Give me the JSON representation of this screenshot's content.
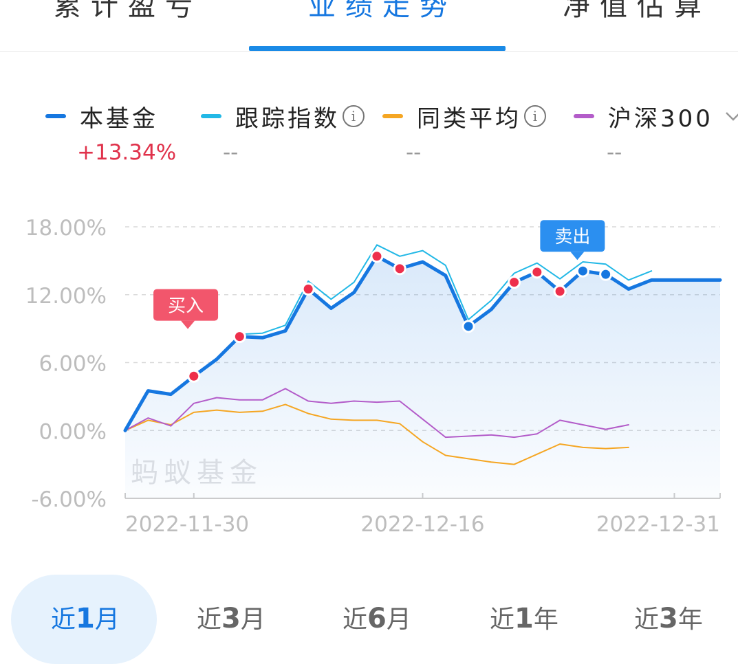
{
  "tabs": [
    {
      "label": "累计盈亏"
    },
    {
      "label": "业绩走势"
    },
    {
      "label": "净值估算"
    }
  ],
  "legend": [
    {
      "label": "本基金",
      "value": "+13.34%",
      "color": "#1677e0"
    },
    {
      "label": "跟踪指数",
      "value": "--",
      "color": "#22b8e6"
    },
    {
      "label": "同类平均",
      "value": "--",
      "color": "#f5a623"
    },
    {
      "label": "沪深300",
      "value": "",
      "color": "#b35cc9"
    }
  ],
  "watermark": "蚂蚁基金",
  "ranges": [
    {
      "label": "近",
      "strong": "1",
      "suffix": "月"
    },
    {
      "label": "近",
      "strong": "3",
      "suffix": "月"
    },
    {
      "label": "近",
      "strong": "6",
      "suffix": "月"
    },
    {
      "label": "近",
      "strong": "1",
      "suffix": "年"
    },
    {
      "label": "近",
      "strong": "3",
      "suffix": "年"
    }
  ],
  "chart_data": {
    "type": "line",
    "ylim": [
      -6,
      18
    ],
    "yticks": [
      "18.00%",
      "12.00%",
      "6.00%",
      "0.00%",
      "-6.00%"
    ],
    "ytick_values": [
      18,
      12,
      6,
      0,
      -6
    ],
    "xtick_labels": [
      "2022-11-30",
      "2022-12-16",
      "2022-12-31"
    ],
    "xtick_index": [
      3,
      13,
      24
    ],
    "x": [
      "2022-11-24",
      "2022-11-25",
      "2022-11-28",
      "2022-11-29",
      "2022-11-30",
      "2022-12-01",
      "2022-12-02",
      "2022-12-05",
      "2022-12-06",
      "2022-12-07",
      "2022-12-08",
      "2022-12-09",
      "2022-12-12",
      "2022-12-13",
      "2022-12-14",
      "2022-12-15",
      "2022-12-16",
      "2022-12-19",
      "2022-12-20",
      "2022-12-21",
      "2022-12-22",
      "2022-12-23",
      "2022-12-26",
      "2022-12-27",
      "2022-12-28",
      "2022-12-29",
      "2022-12-30"
    ],
    "series": [
      {
        "name": "本基金",
        "color": "#1677e0",
        "values": [
          0,
          3.5,
          3.2,
          4.8,
          6.3,
          8.3,
          8.2,
          8.8,
          12.5,
          10.8,
          12.2,
          15.4,
          14.3,
          14.9,
          13.7,
          9.2,
          10.7,
          13.1,
          14.0,
          12.3,
          14.1,
          13.8,
          12.5,
          13.3,
          13.3,
          13.3,
          13.3
        ],
        "markers": [
          {
            "i": 3,
            "kind": "buy"
          },
          {
            "i": 5,
            "kind": "buy"
          },
          {
            "i": 8,
            "kind": "buy"
          },
          {
            "i": 11,
            "kind": "buy"
          },
          {
            "i": 12,
            "kind": "buy"
          },
          {
            "i": 15,
            "kind": "sell"
          },
          {
            "i": 17,
            "kind": "buy"
          },
          {
            "i": 18,
            "kind": "buy"
          },
          {
            "i": 19,
            "kind": "buy"
          },
          {
            "i": 20,
            "kind": "sell"
          },
          {
            "i": 21,
            "kind": "sell"
          }
        ]
      },
      {
        "name": "跟踪指数",
        "color": "#22b8e6",
        "values": [
          null,
          null,
          null,
          null,
          null,
          8.5,
          8.6,
          9.3,
          13.2,
          11.6,
          13.1,
          16.4,
          15.4,
          15.9,
          14.6,
          9.8,
          11.5,
          13.9,
          14.8,
          13.4,
          14.9,
          14.7,
          13.3,
          14.1,
          null,
          null,
          null
        ]
      },
      {
        "name": "同类平均",
        "color": "#f5a623",
        "values": [
          0,
          0.9,
          0.5,
          1.6,
          1.8,
          1.6,
          1.7,
          2.3,
          1.5,
          1.0,
          0.9,
          0.9,
          0.6,
          -1.0,
          -2.2,
          -2.5,
          -2.8,
          -3.0,
          -2.1,
          -1.2,
          -1.5,
          -1.6,
          -1.5,
          null,
          null,
          null,
          null
        ]
      },
      {
        "name": "沪深300",
        "color": "#b35cc9",
        "values": [
          0,
          1.1,
          0.4,
          2.4,
          2.9,
          2.7,
          2.7,
          3.7,
          2.6,
          2.4,
          2.6,
          2.5,
          2.6,
          1.0,
          -0.6,
          -0.5,
          -0.4,
          -0.6,
          -0.3,
          0.9,
          0.5,
          0.1,
          0.5,
          null,
          null,
          null,
          null
        ]
      }
    ],
    "annotations": [
      {
        "text": "买入",
        "at_index": 4,
        "kind": "buy"
      },
      {
        "text": "卖出",
        "at_index": 20,
        "kind": "sell"
      }
    ]
  }
}
